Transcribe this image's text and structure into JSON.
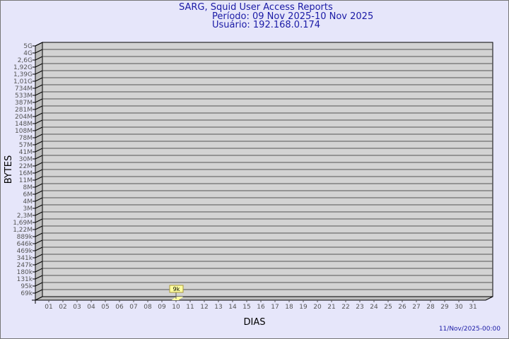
{
  "chart_data": {
    "type": "bar",
    "title": "SARG, Squid User Access Reports",
    "subtitle_period": "Período: 09 Nov 2025-10 Nov 2025",
    "subtitle_user": "Usuário: 192.168.0.174",
    "xlabel": "DIAS",
    "ylabel": "BYTES",
    "y_scale": "log",
    "y_tick_labels": [
      "5G",
      "4G",
      "2,6G",
      "1,92G",
      "1,39G",
      "1,01G",
      "734M",
      "533M",
      "387M",
      "281M",
      "204M",
      "148M",
      "108M",
      "78M",
      "57M",
      "41M",
      "30M",
      "22M",
      "16M",
      "11M",
      "8M",
      "6M",
      "4M",
      "3M",
      "2,3M",
      "1,69M",
      "1,22M",
      "889k",
      "646k",
      "469k",
      "341k",
      "247k",
      "180k",
      "131k",
      "95k",
      "69k"
    ],
    "categories": [
      "01",
      "02",
      "03",
      "04",
      "05",
      "06",
      "07",
      "08",
      "09",
      "10",
      "11",
      "12",
      "13",
      "14",
      "15",
      "16",
      "17",
      "18",
      "19",
      "20",
      "21",
      "22",
      "23",
      "24",
      "25",
      "26",
      "27",
      "28",
      "29",
      "30",
      "31"
    ],
    "series": [
      {
        "values": {
          "10": 9000
        },
        "data_labels": {
          "10": "9k"
        }
      }
    ],
    "grid": true,
    "bar_color": "#ffffa0",
    "wall_color": "#d3d3d3"
  },
  "timestamp": "11/Nov/2025-00:00"
}
